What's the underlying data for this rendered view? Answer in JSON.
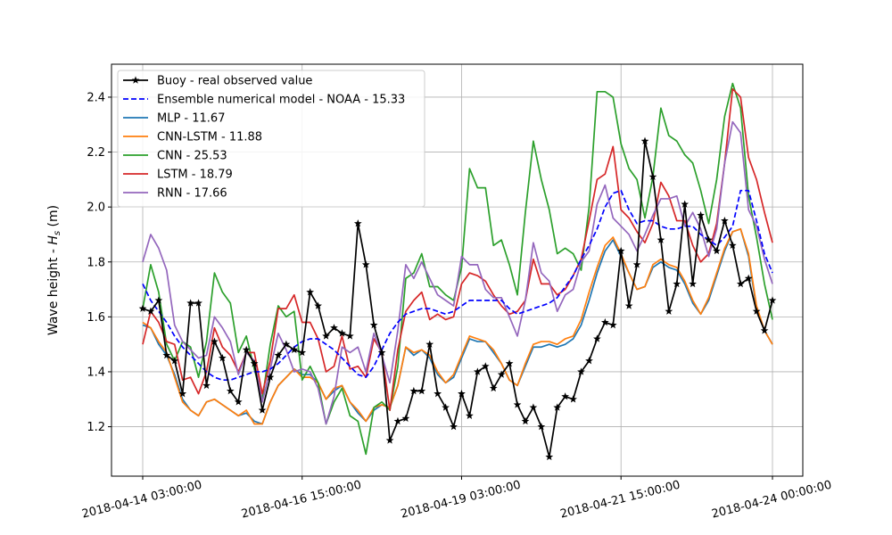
{
  "chart_data": {
    "type": "line",
    "ylabel_text": "Wave height - ",
    "ylabel_symbol": "H",
    "ylabel_subscript": "s",
    "ylabel_unit": " (m)",
    "xlabel": "",
    "x_ticks": [
      "2018-04-14 03:00:00",
      "2018-04-16 15:00:00",
      "2018-04-19 03:00:00",
      "2018-04-21 15:00:00",
      "2018-04-24 00:00:00"
    ],
    "x_tick_indices": [
      0,
      20,
      40,
      60,
      79
    ],
    "n_points": 80,
    "ylim": [
      1.02,
      2.52
    ],
    "y_ticks": [
      "1.2",
      "1.4",
      "1.6",
      "1.8",
      "2.0",
      "2.2",
      "2.4"
    ],
    "y_tick_values": [
      1.2,
      1.4,
      1.6,
      1.8,
      2.0,
      2.2,
      2.4
    ],
    "grid": true,
    "legend_position": "top-left",
    "series": [
      {
        "name": "Buoy - real observed value",
        "color": "#000000",
        "style": "solid-star",
        "values": [
          1.63,
          1.62,
          1.66,
          1.46,
          1.44,
          1.32,
          1.65,
          1.65,
          1.35,
          1.51,
          1.45,
          1.33,
          1.29,
          1.48,
          1.43,
          1.26,
          1.38,
          1.46,
          1.5,
          1.48,
          1.47,
          1.69,
          1.64,
          1.53,
          1.56,
          1.54,
          1.53,
          1.94,
          1.79,
          1.57,
          1.47,
          1.15,
          1.22,
          1.23,
          1.33,
          1.33,
          1.5,
          1.32,
          1.27,
          1.2,
          1.32,
          1.24,
          1.4,
          1.42,
          1.34,
          1.39,
          1.43,
          1.28,
          1.22,
          1.27,
          1.2,
          1.09,
          1.27,
          1.31,
          1.3,
          1.4,
          1.44,
          1.52,
          1.58,
          1.57,
          1.84,
          1.64,
          1.79,
          2.24,
          2.11,
          1.88,
          1.62,
          1.72,
          2.01,
          1.72,
          1.97,
          1.88,
          1.84,
          1.95,
          1.86,
          1.72,
          1.74,
          1.62,
          1.55,
          1.66
        ]
      },
      {
        "name": "Ensemble numerical model - NOAA - 15.33",
        "color": "#0000ff",
        "style": "dashed",
        "values": [
          1.72,
          1.66,
          1.62,
          1.58,
          1.53,
          1.49,
          1.46,
          1.43,
          1.4,
          1.38,
          1.37,
          1.37,
          1.38,
          1.39,
          1.4,
          1.4,
          1.41,
          1.43,
          1.46,
          1.49,
          1.51,
          1.52,
          1.52,
          1.5,
          1.48,
          1.45,
          1.42,
          1.39,
          1.38,
          1.42,
          1.48,
          1.54,
          1.58,
          1.61,
          1.62,
          1.63,
          1.63,
          1.62,
          1.61,
          1.62,
          1.64,
          1.66,
          1.66,
          1.66,
          1.66,
          1.66,
          1.63,
          1.61,
          1.62,
          1.63,
          1.64,
          1.65,
          1.67,
          1.71,
          1.75,
          1.81,
          1.86,
          1.92,
          2.0,
          2.05,
          2.06,
          1.99,
          1.94,
          1.95,
          1.95,
          1.93,
          1.92,
          1.92,
          1.93,
          1.93,
          1.9,
          1.88,
          1.86,
          1.89,
          1.93,
          2.06,
          2.06,
          1.95,
          1.83,
          1.76
        ]
      },
      {
        "name": "MLP - 11.67",
        "color": "#1f77b4",
        "style": "solid",
        "values": [
          1.57,
          1.56,
          1.5,
          1.46,
          1.39,
          1.3,
          1.26,
          1.24,
          1.29,
          1.3,
          1.28,
          1.26,
          1.24,
          1.25,
          1.22,
          1.21,
          1.29,
          1.35,
          1.38,
          1.41,
          1.39,
          1.39,
          1.36,
          1.3,
          1.33,
          1.35,
          1.29,
          1.25,
          1.22,
          1.26,
          1.28,
          1.27,
          1.35,
          1.49,
          1.46,
          1.48,
          1.45,
          1.39,
          1.36,
          1.38,
          1.45,
          1.52,
          1.51,
          1.51,
          1.47,
          1.43,
          1.37,
          1.35,
          1.42,
          1.49,
          1.49,
          1.5,
          1.49,
          1.5,
          1.52,
          1.57,
          1.66,
          1.76,
          1.84,
          1.88,
          1.82,
          1.76,
          1.7,
          1.71,
          1.78,
          1.8,
          1.78,
          1.77,
          1.72,
          1.65,
          1.61,
          1.66,
          1.75,
          1.84,
          1.91,
          1.92,
          1.82,
          1.63,
          1.55,
          1.5
        ]
      },
      {
        "name": "CNN-LSTM - 11.88",
        "color": "#ff7f0e",
        "style": "solid",
        "values": [
          1.58,
          1.56,
          1.51,
          1.47,
          1.38,
          1.29,
          1.26,
          1.24,
          1.29,
          1.3,
          1.28,
          1.26,
          1.24,
          1.26,
          1.21,
          1.21,
          1.29,
          1.35,
          1.38,
          1.41,
          1.38,
          1.38,
          1.36,
          1.3,
          1.34,
          1.35,
          1.29,
          1.26,
          1.22,
          1.27,
          1.28,
          1.27,
          1.35,
          1.49,
          1.47,
          1.48,
          1.46,
          1.4,
          1.36,
          1.39,
          1.46,
          1.53,
          1.52,
          1.51,
          1.48,
          1.43,
          1.37,
          1.35,
          1.43,
          1.5,
          1.51,
          1.51,
          1.5,
          1.52,
          1.53,
          1.59,
          1.69,
          1.78,
          1.86,
          1.89,
          1.83,
          1.76,
          1.7,
          1.71,
          1.79,
          1.81,
          1.79,
          1.78,
          1.73,
          1.66,
          1.61,
          1.67,
          1.76,
          1.85,
          1.91,
          1.92,
          1.83,
          1.64,
          1.55,
          1.5
        ]
      },
      {
        "name": "CNN - 25.53",
        "color": "#2ca02c",
        "style": "solid",
        "values": [
          1.63,
          1.79,
          1.69,
          1.5,
          1.44,
          1.51,
          1.49,
          1.38,
          1.51,
          1.76,
          1.69,
          1.65,
          1.47,
          1.53,
          1.41,
          1.3,
          1.5,
          1.64,
          1.6,
          1.62,
          1.37,
          1.42,
          1.36,
          1.21,
          1.29,
          1.34,
          1.24,
          1.22,
          1.1,
          1.27,
          1.29,
          1.26,
          1.42,
          1.74,
          1.76,
          1.83,
          1.71,
          1.71,
          1.68,
          1.66,
          1.78,
          2.14,
          2.07,
          2.07,
          1.86,
          1.88,
          1.79,
          1.68,
          1.98,
          2.24,
          2.1,
          1.99,
          1.83,
          1.85,
          1.83,
          1.77,
          2.0,
          2.42,
          2.42,
          2.4,
          2.23,
          2.14,
          2.1,
          1.96,
          2.11,
          2.36,
          2.26,
          2.24,
          2.19,
          2.16,
          2.06,
          1.94,
          2.1,
          2.33,
          2.45,
          2.36,
          2.04,
          1.89,
          1.72,
          1.59
        ]
      },
      {
        "name": "LSTM - 18.79",
        "color": "#d62728",
        "style": "solid",
        "values": [
          1.5,
          1.62,
          1.58,
          1.51,
          1.5,
          1.37,
          1.38,
          1.32,
          1.4,
          1.56,
          1.49,
          1.46,
          1.4,
          1.47,
          1.47,
          1.32,
          1.44,
          1.63,
          1.63,
          1.68,
          1.58,
          1.58,
          1.52,
          1.4,
          1.42,
          1.53,
          1.41,
          1.42,
          1.38,
          1.52,
          1.47,
          1.26,
          1.48,
          1.62,
          1.66,
          1.69,
          1.59,
          1.61,
          1.59,
          1.6,
          1.72,
          1.76,
          1.75,
          1.73,
          1.68,
          1.64,
          1.61,
          1.62,
          1.66,
          1.81,
          1.72,
          1.72,
          1.68,
          1.7,
          1.75,
          1.81,
          1.95,
          2.1,
          2.12,
          2.22,
          1.99,
          1.96,
          1.91,
          1.87,
          1.94,
          2.09,
          2.04,
          1.95,
          1.95,
          1.86,
          1.8,
          1.83,
          1.94,
          2.16,
          2.43,
          2.4,
          2.18,
          2.1,
          1.98,
          1.87
        ]
      },
      {
        "name": "RNN - 17.66",
        "color": "#9467bd",
        "style": "solid",
        "values": [
          1.8,
          1.9,
          1.85,
          1.77,
          1.57,
          1.51,
          1.48,
          1.45,
          1.46,
          1.6,
          1.56,
          1.51,
          1.39,
          1.47,
          1.44,
          1.29,
          1.41,
          1.54,
          1.48,
          1.4,
          1.41,
          1.4,
          1.34,
          1.21,
          1.31,
          1.49,
          1.47,
          1.49,
          1.4,
          1.54,
          1.46,
          1.36,
          1.55,
          1.79,
          1.74,
          1.8,
          1.74,
          1.68,
          1.66,
          1.64,
          1.82,
          1.79,
          1.79,
          1.7,
          1.67,
          1.67,
          1.6,
          1.53,
          1.66,
          1.87,
          1.76,
          1.73,
          1.62,
          1.68,
          1.7,
          1.8,
          1.84,
          2.01,
          2.08,
          1.96,
          1.93,
          1.9,
          1.84,
          1.9,
          1.97,
          2.03,
          2.03,
          2.04,
          1.93,
          1.98,
          1.92,
          1.82,
          1.92,
          2.16,
          2.31,
          2.27,
          1.99,
          1.93,
          1.81,
          1.72
        ]
      }
    ]
  }
}
